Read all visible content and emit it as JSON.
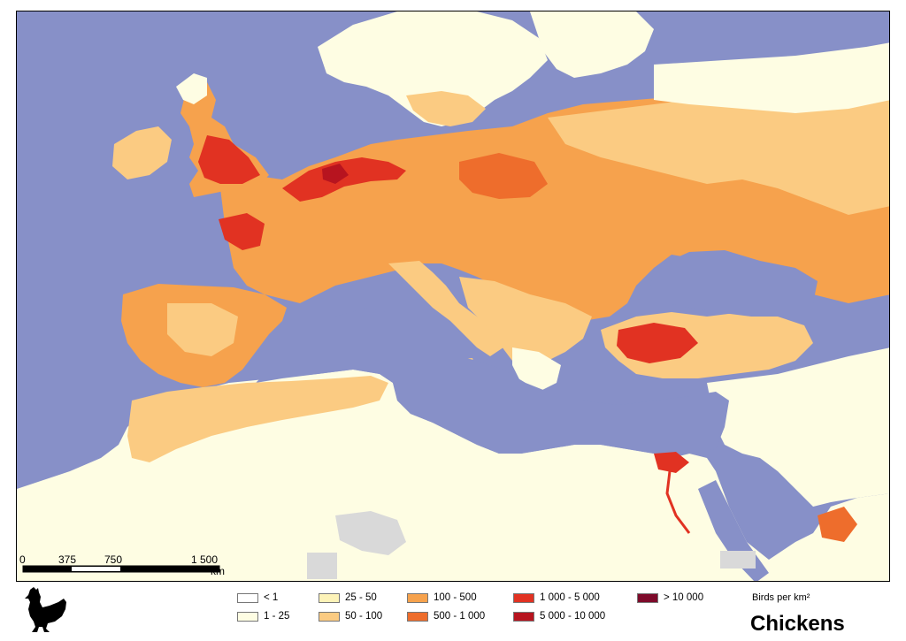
{
  "map": {
    "title": "Chickens",
    "units": "Birds per km²",
    "colors": {
      "sea": "#8790c8",
      "nodata": "#d9d9d9"
    }
  },
  "scalebar": {
    "ticks": [
      "0",
      "375",
      "750",
      "1 500"
    ],
    "unit": "km"
  },
  "legend": [
    {
      "label": "< 1",
      "color": "#ffffff"
    },
    {
      "label": "1 - 25",
      "color": "#fefde3"
    },
    {
      "label": "25 - 50",
      "color": "#fdf3b8"
    },
    {
      "label": "50 - 100",
      "color": "#fbcb82"
    },
    {
      "label": "100 - 500",
      "color": "#f6a24d"
    },
    {
      "label": "500 - 1 000",
      "color": "#ee6d2c"
    },
    {
      "label": "1 000 - 5 000",
      "color": "#e13222"
    },
    {
      "label": "5 000 - 10 000",
      "color": "#b7141f"
    },
    {
      "label": "> 10 000",
      "color": "#7d0a2a"
    }
  ],
  "icons": {
    "chicken": "chicken-silhouette-icon"
  }
}
